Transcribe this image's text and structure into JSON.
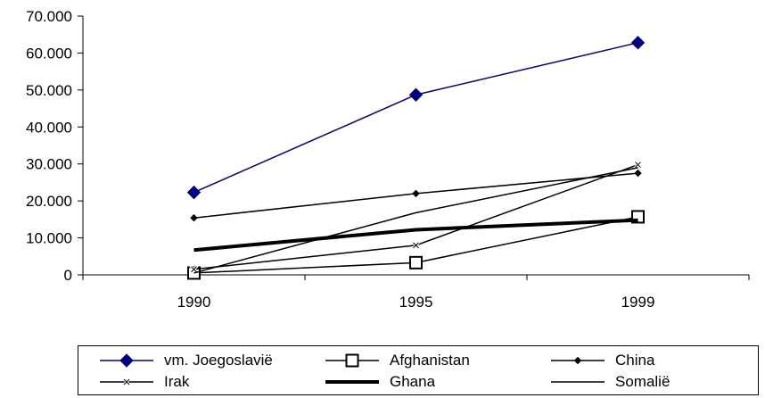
{
  "chart_data": {
    "type": "line",
    "categories": [
      "1990",
      "1995",
      "1999"
    ],
    "ylim": [
      0,
      70000
    ],
    "yticks": [
      "0",
      "10.000",
      "20.000",
      "30.000",
      "40.000",
      "50.000",
      "60.000",
      "70.000"
    ],
    "grid": false,
    "legend_position": "bottom",
    "series": [
      {
        "name": "vm. Joegoslavië",
        "values": [
          22300,
          48700,
          62800
        ],
        "color": "#00007f",
        "marker": "diamond",
        "width": 1.5
      },
      {
        "name": "Afghanistan",
        "values": [
          500,
          3300,
          15700
        ],
        "color": "#000000",
        "marker": "square",
        "width": 1.5
      },
      {
        "name": "China",
        "values": [
          15400,
          22000,
          27500
        ],
        "color": "#000000",
        "marker": "small-diamond",
        "width": 1.5
      },
      {
        "name": "Irak",
        "values": [
          1500,
          8000,
          29800
        ],
        "color": "#000000",
        "marker": "cross",
        "width": 1.5
      },
      {
        "name": "Ghana",
        "values": [
          6700,
          12200,
          14800
        ],
        "color": "#000000",
        "marker": "none",
        "width": 4
      },
      {
        "name": "Somalië",
        "values": [
          500,
          16800,
          29000
        ],
        "color": "#000000",
        "marker": "none",
        "width": 1.5
      }
    ]
  }
}
